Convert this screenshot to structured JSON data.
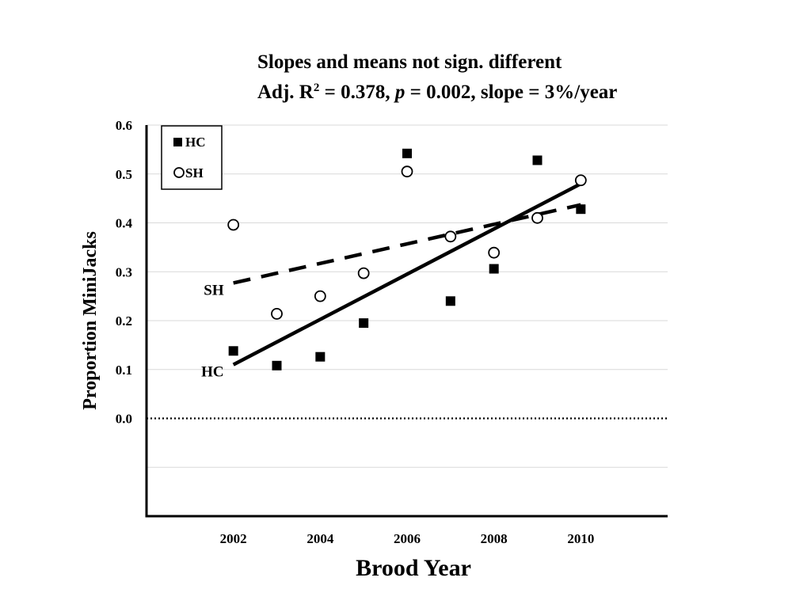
{
  "chart_data": {
    "type": "scatter",
    "title": "",
    "annotations": [
      {
        "id": "line1",
        "parts": [
          {
            "text": "Slopes and means not sign. different"
          }
        ]
      },
      {
        "id": "line2",
        "parts": [
          {
            "text": "Adj. R"
          },
          {
            "text": "2",
            "sup": true
          },
          {
            "text": " = 0.378, "
          },
          {
            "text": "p",
            "italic": true
          },
          {
            "text": " = 0.002, slope = 3%/year"
          }
        ]
      }
    ],
    "xlabel": "Brood Year",
    "ylabel": "Proportion MiniJacks",
    "xlim": [
      2000,
      2012
    ],
    "ylim": [
      -0.2,
      0.6
    ],
    "xticks": [
      2002,
      2004,
      2006,
      2008,
      2010
    ],
    "xtick_labels": [
      "2002",
      "2004",
      "2006",
      "2008",
      "2010"
    ],
    "yticks": [
      0.0,
      0.1,
      0.2,
      0.3,
      0.4,
      0.5,
      0.6
    ],
    "ytick_labels": [
      "0.0",
      "0.1",
      "0.2",
      "0.3",
      "0.4",
      "0.5",
      "0.6"
    ],
    "gridlines": [
      -0.1,
      0.1,
      0.2,
      0.3,
      0.4,
      0.5,
      0.6
    ],
    "grid": true,
    "legend_position": "top-left",
    "zero_line_style": "dotted",
    "series": [
      {
        "name": "HC",
        "marker": "filled-square",
        "x": [
          2002,
          2003,
          2004,
          2005,
          2006,
          2007,
          2008,
          2009,
          2010
        ],
        "y": [
          0.138,
          0.108,
          0.126,
          0.195,
          0.542,
          0.24,
          0.306,
          0.528,
          0.428
        ],
        "trend": {
          "style": "solid",
          "x": [
            2002,
            2010
          ],
          "y": [
            0.11,
            0.48
          ],
          "label": "HC"
        }
      },
      {
        "name": "SH",
        "marker": "open-circle",
        "x": [
          2002,
          2003,
          2004,
          2005,
          2006,
          2007,
          2008,
          2009,
          2010
        ],
        "y": [
          0.396,
          0.214,
          0.25,
          0.297,
          0.505,
          0.372,
          0.339,
          0.41,
          0.487
        ],
        "trend": {
          "style": "dashed",
          "x": [
            2002,
            2010
          ],
          "y": [
            0.277,
            0.437
          ],
          "label": "SH"
        }
      }
    ]
  }
}
